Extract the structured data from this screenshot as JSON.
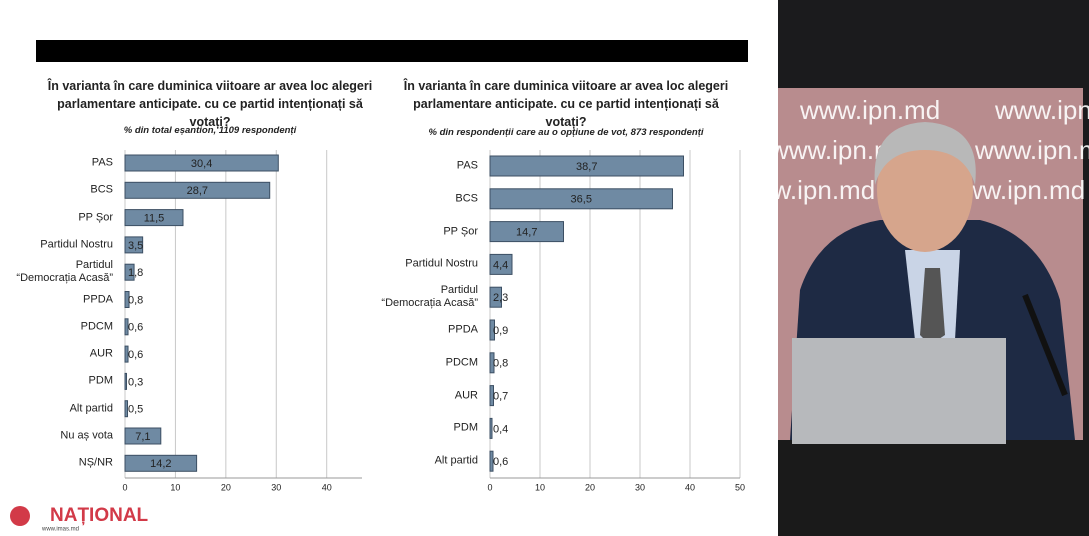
{
  "chart_data": [
    {
      "type": "bar",
      "orientation": "horizontal",
      "title": "În varianta în care duminica viitoare ar avea loc alegeri parlamentare anticipate. cu ce partid intenționați să votați?",
      "subtitle": "% din total eșantion, 1109 respondenți",
      "categories": [
        "PAS",
        "BCS",
        "PP Șor",
        "Partidul Nostru",
        "Partidul\n“Democrația Acasă”",
        "PPDA",
        "PDCM",
        "AUR",
        "PDM",
        "Alt partid",
        "Nu aș vota",
        "NȘ/NR"
      ],
      "values": [
        30.4,
        28.7,
        11.5,
        3.5,
        1.8,
        0.8,
        0.6,
        0.6,
        0.3,
        0.5,
        7.1,
        14.2
      ],
      "value_labels": [
        "30,4",
        "28,7",
        "11,5",
        "3,5",
        "1,8",
        "0,8",
        "0,6",
        "0,6",
        "0,3",
        "0,5",
        "7,1",
        "14,2"
      ],
      "color": "#6f8aa3",
      "xlim": [
        0,
        47
      ],
      "xticks": [
        0,
        10,
        20,
        30,
        40
      ],
      "grid": true
    },
    {
      "type": "bar",
      "orientation": "horizontal",
      "title": "În varianta în care duminica viitoare ar avea loc alegeri parlamentare anticipate. cu ce partid intenționați să votați?",
      "subtitle": "% din respondenții care au o opțiune de vot, 873 respondenți",
      "categories": [
        "PAS",
        "BCS",
        "PP Șor",
        "Partidul Nostru",
        "Partidul\n“Democrația Acasă”",
        "PPDA",
        "PDCM",
        "AUR",
        "PDM",
        "Alt partid"
      ],
      "values": [
        38.7,
        36.5,
        14.7,
        4.4,
        2.3,
        0.9,
        0.8,
        0.7,
        0.4,
        0.6
      ],
      "value_labels": [
        "38,7",
        "36,5",
        "14,7",
        "4,4",
        "2,3",
        "0,9",
        "0,8",
        "0,7",
        "0,4",
        "0,6"
      ],
      "color": "#6f8aa3",
      "xlim": [
        0,
        50
      ],
      "xticks": [
        0,
        10,
        20,
        30,
        40,
        50
      ],
      "grid": true
    }
  ],
  "logo": {
    "text": "NAȚIONAL",
    "url": "www.imas.md"
  },
  "video": {
    "watermark": "www.ipn.md"
  }
}
